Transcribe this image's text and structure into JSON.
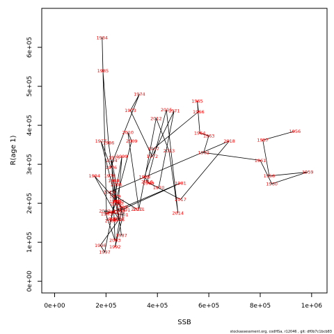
{
  "chart_data": {
    "type": "line",
    "xlabel": "SSB",
    "ylabel": "R(age 1)",
    "xlim": [
      -50000,
      1060000
    ],
    "ylim": [
      -30000,
      700000
    ],
    "x_ticks": [
      {
        "value": 0,
        "label": "0e+00"
      },
      {
        "value": 200000,
        "label": "2e+05"
      },
      {
        "value": 400000,
        "label": "4e+05"
      },
      {
        "value": 600000,
        "label": "6e+05"
      },
      {
        "value": 800000,
        "label": "8e+05"
      },
      {
        "value": 1000000,
        "label": "1e+06"
      }
    ],
    "y_ticks": [
      {
        "value": 0,
        "label": "0e+00"
      },
      {
        "value": 100000,
        "label": "1e+05"
      },
      {
        "value": 200000,
        "label": "2e+05"
      },
      {
        "value": 300000,
        "label": "3e+05"
      },
      {
        "value": 400000,
        "label": "4e+05"
      },
      {
        "value": 500000,
        "label": "5e+05"
      },
      {
        "value": 600000,
        "label": "6e+05"
      }
    ],
    "line_color": "#000000",
    "label_color": "#ff0000",
    "points": [
      {
        "year": "1956",
        "x": 935000,
        "y": 385000
      },
      {
        "year": "1957",
        "x": 810000,
        "y": 362000
      },
      {
        "year": "1958",
        "x": 835000,
        "y": 270000
      },
      {
        "year": "1959",
        "x": 985000,
        "y": 280000
      },
      {
        "year": "1960",
        "x": 845000,
        "y": 250000
      },
      {
        "year": "1961",
        "x": 800000,
        "y": 310000
      },
      {
        "year": "1962",
        "x": 580000,
        "y": 330000
      },
      {
        "year": "1963",
        "x": 600000,
        "y": 373000
      },
      {
        "year": "1964",
        "x": 565000,
        "y": 380000
      },
      {
        "year": "1965",
        "x": 555000,
        "y": 462000
      },
      {
        "year": "1966",
        "x": 560000,
        "y": 435000
      },
      {
        "year": "1967",
        "x": 385000,
        "y": 340000
      },
      {
        "year": "1968",
        "x": 350000,
        "y": 268000
      },
      {
        "year": "1969",
        "x": 365000,
        "y": 252000
      },
      {
        "year": "1970",
        "x": 405000,
        "y": 240000
      },
      {
        "year": "1971",
        "x": 465000,
        "y": 437000
      },
      {
        "year": "1972",
        "x": 380000,
        "y": 320000
      },
      {
        "year": "1973",
        "x": 295000,
        "y": 438000
      },
      {
        "year": "1974",
        "x": 330000,
        "y": 480000
      },
      {
        "year": "1975",
        "x": 232000,
        "y": 318000
      },
      {
        "year": "1976",
        "x": 220000,
        "y": 292000
      },
      {
        "year": "1977",
        "x": 180000,
        "y": 360000
      },
      {
        "year": "1978",
        "x": 215000,
        "y": 270000
      },
      {
        "year": "1979",
        "x": 235000,
        "y": 218000
      },
      {
        "year": "1980",
        "x": 250000,
        "y": 180000
      },
      {
        "year": "1981",
        "x": 490000,
        "y": 252000
      },
      {
        "year": "1982",
        "x": 225000,
        "y": 178000
      },
      {
        "year": "1983",
        "x": 202000,
        "y": 173000
      },
      {
        "year": "1984",
        "x": 185000,
        "y": 625000
      },
      {
        "year": "1985",
        "x": 188000,
        "y": 540000
      },
      {
        "year": "1986",
        "x": 210000,
        "y": 355000
      },
      {
        "year": "1987",
        "x": 260000,
        "y": 118000
      },
      {
        "year": "1988",
        "x": 230000,
        "y": 258000
      },
      {
        "year": "1989",
        "x": 235000,
        "y": 205000
      },
      {
        "year": "1990",
        "x": 245000,
        "y": 200000
      },
      {
        "year": "1991",
        "x": 272000,
        "y": 183000
      },
      {
        "year": "1992",
        "x": 235000,
        "y": 88000
      },
      {
        "year": "1993",
        "x": 262000,
        "y": 190000
      },
      {
        "year": "1994",
        "x": 155000,
        "y": 270000
      },
      {
        "year": "1995",
        "x": 250000,
        "y": 158000
      },
      {
        "year": "1996",
        "x": 178000,
        "y": 92000
      },
      {
        "year": "1997",
        "x": 195000,
        "y": 75000
      },
      {
        "year": "1998",
        "x": 220000,
        "y": 160000
      },
      {
        "year": "1999",
        "x": 262000,
        "y": 320000
      },
      {
        "year": "2000",
        "x": 248000,
        "y": 205000
      },
      {
        "year": "2001",
        "x": 265000,
        "y": 170000
      },
      {
        "year": "2002",
        "x": 195000,
        "y": 180000
      },
      {
        "year": "2003",
        "x": 235000,
        "y": 105000
      },
      {
        "year": "2004",
        "x": 222000,
        "y": 310000
      },
      {
        "year": "2005",
        "x": 240000,
        "y": 248000
      },
      {
        "year": "2006",
        "x": 238000,
        "y": 198000
      },
      {
        "year": "2007",
        "x": 250000,
        "y": 160000
      },
      {
        "year": "2008",
        "x": 218000,
        "y": 155000
      },
      {
        "year": "2009",
        "x": 300000,
        "y": 360000
      },
      {
        "year": "2010",
        "x": 285000,
        "y": 382000
      },
      {
        "year": "2011",
        "x": 328000,
        "y": 185000
      },
      {
        "year": "2012",
        "x": 395000,
        "y": 418000
      },
      {
        "year": "2013",
        "x": 445000,
        "y": 335000
      },
      {
        "year": "2014",
        "x": 480000,
        "y": 175000
      },
      {
        "year": "2015",
        "x": 435000,
        "y": 440000
      },
      {
        "year": "2016",
        "x": 360000,
        "y": 255000
      },
      {
        "year": "2017",
        "x": 490000,
        "y": 210000
      },
      {
        "year": "2018",
        "x": 680000,
        "y": 360000
      },
      {
        "year": "2019",
        "x": 212000,
        "y": 228000
      },
      {
        "year": "2020",
        "x": 320000,
        "y": 185000
      }
    ],
    "footer_text": "stockassessment.org, codHSa, r12046 ,  git: df0b7c1bcb83"
  }
}
